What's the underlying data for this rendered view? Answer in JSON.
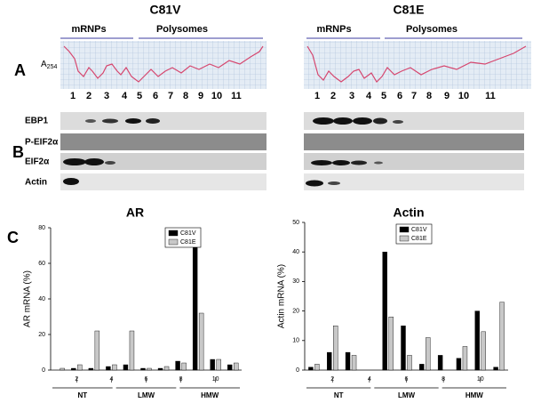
{
  "panel_labels": [
    "A",
    "B",
    "C"
  ],
  "absorbance_label": {
    "text": "A",
    "subscript": "254"
  },
  "gels": [
    {
      "title": "C81V",
      "left_label": "mRNPs",
      "right_label": "Polysomes",
      "lanes": [
        "1",
        "2",
        "3",
        "4",
        "5",
        "6",
        "7",
        "8",
        "9",
        "10",
        "11"
      ]
    },
    {
      "title": "C81E",
      "left_label": "mRNPs",
      "right_label": "Polysomes",
      "lanes": [
        "1",
        "2",
        "3",
        "4",
        "5",
        "6",
        "7",
        "8",
        "9",
        "10",
        "11"
      ]
    }
  ],
  "blot_labels": [
    "EBP1",
    "P-EIF2α",
    "EIF2α",
    "Actin"
  ],
  "chart_data": [
    {
      "type": "bar",
      "title": "AR",
      "y_label": "AR mRNA (%)",
      "categories": [
        null,
        "2",
        null,
        "4",
        null,
        "6",
        null,
        "8",
        null,
        "10",
        null
      ],
      "series": [
        {
          "name": "C81V",
          "color": "#000000",
          "values": [
            0,
            1,
            1,
            2,
            3,
            1,
            1,
            5,
            77,
            6,
            3
          ]
        },
        {
          "name": "C81E",
          "color": "#c8c8c8",
          "values": [
            1,
            3,
            22,
            3,
            22,
            1,
            2,
            4,
            32,
            6,
            4
          ]
        }
      ],
      "ylim": [
        0,
        80
      ],
      "yticks": [
        0,
        20,
        40,
        60,
        80
      ],
      "groups": [
        "NT",
        "LMW",
        "HMW"
      ]
    },
    {
      "type": "bar",
      "title": "Actin",
      "y_label": "Actin mRNA (%)",
      "categories": [
        null,
        "2",
        null,
        "4",
        null,
        "6",
        null,
        "8",
        null,
        "10",
        null
      ],
      "series": [
        {
          "name": "C81V",
          "color": "#000000",
          "values": [
            1,
            6,
            6,
            null,
            40,
            15,
            2,
            5,
            4,
            20,
            1
          ]
        },
        {
          "name": "C81E",
          "color": "#c8c8c8",
          "values": [
            2,
            15,
            5,
            null,
            18,
            5,
            11,
            0,
            8,
            13,
            23
          ]
        }
      ],
      "ylim": [
        0,
        50
      ],
      "yticks": [
        0,
        10,
        20,
        30,
        40,
        50
      ],
      "groups": [
        "NT",
        "LMW",
        "HMW"
      ]
    }
  ]
}
